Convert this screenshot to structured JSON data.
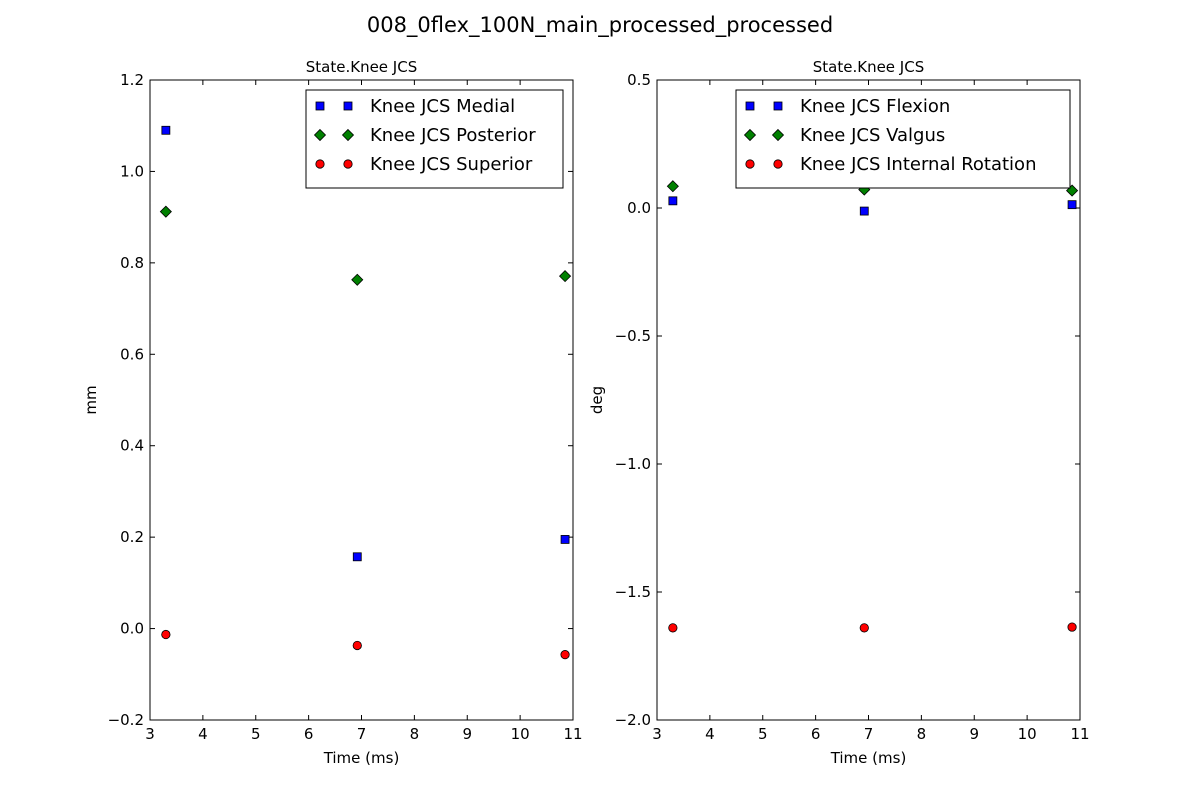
{
  "figure": {
    "suptitle": "008_0flex_100N_main_processed_processed"
  },
  "chart_data": [
    {
      "type": "scatter",
      "title": "State.Knee JCS",
      "xlabel": "Time (ms)",
      "ylabel": "mm",
      "xlim": [
        3,
        11
      ],
      "ylim": [
        -0.2,
        1.2
      ],
      "xticks": [
        3,
        4,
        5,
        6,
        7,
        8,
        9,
        10,
        11
      ],
      "xtick_labels": [
        "3",
        "4",
        "5",
        "6",
        "7",
        "8",
        "9",
        "10",
        "11"
      ],
      "yticks": [
        -0.2,
        0.0,
        0.2,
        0.4,
        0.6,
        0.8,
        1.0,
        1.2
      ],
      "ytick_labels": [
        "−0.2",
        "0.0",
        "0.2",
        "0.4",
        "0.6",
        "0.8",
        "1.0",
        "1.2"
      ],
      "legend_position": "upper-right",
      "grid": false,
      "series": [
        {
          "name": "Knee JCS Medial",
          "marker": "square",
          "color": "#0000ff",
          "x": [
            3.3,
            6.92,
            10.85
          ],
          "y": [
            1.09,
            0.157,
            0.195
          ]
        },
        {
          "name": "Knee JCS Posterior",
          "marker": "diamond",
          "color": "#008000",
          "x": [
            3.3,
            6.92,
            10.85
          ],
          "y": [
            0.912,
            0.763,
            0.771
          ]
        },
        {
          "name": "Knee JCS Superior",
          "marker": "circle",
          "color": "#ff0000",
          "x": [
            3.3,
            6.92,
            10.85
          ],
          "y": [
            -0.013,
            -0.037,
            -0.057
          ]
        }
      ]
    },
    {
      "type": "scatter",
      "title": "State.Knee JCS",
      "xlabel": "Time (ms)",
      "ylabel": "deg",
      "xlim": [
        3,
        11
      ],
      "ylim": [
        -2.0,
        0.5
      ],
      "xticks": [
        3,
        4,
        5,
        6,
        7,
        8,
        9,
        10,
        11
      ],
      "xtick_labels": [
        "3",
        "4",
        "5",
        "6",
        "7",
        "8",
        "9",
        "10",
        "11"
      ],
      "yticks": [
        -2.0,
        -1.5,
        -1.0,
        -0.5,
        0.0,
        0.5
      ],
      "ytick_labels": [
        "−2.0",
        "−1.5",
        "−1.0",
        "−0.5",
        "0.0",
        "0.5"
      ],
      "legend_position": "upper-right",
      "grid": false,
      "series": [
        {
          "name": "Knee JCS Flexion",
          "marker": "square",
          "color": "#0000ff",
          "x": [
            3.3,
            6.92,
            10.85
          ],
          "y": [
            0.028,
            -0.012,
            0.013
          ]
        },
        {
          "name": "Knee JCS Valgus",
          "marker": "diamond",
          "color": "#008000",
          "x": [
            3.3,
            6.92,
            10.85
          ],
          "y": [
            0.085,
            0.072,
            0.068
          ]
        },
        {
          "name": "Knee JCS Internal Rotation",
          "marker": "circle",
          "color": "#ff0000",
          "x": [
            3.3,
            6.92,
            10.85
          ],
          "y": [
            -1.64,
            -1.64,
            -1.637
          ]
        }
      ]
    }
  ]
}
